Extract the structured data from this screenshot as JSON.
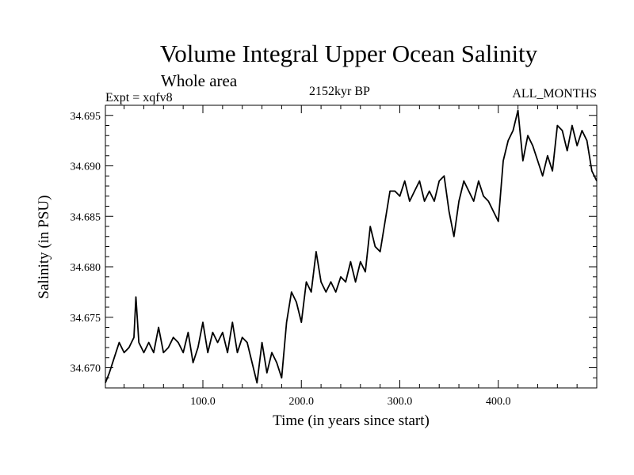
{
  "chart_data": {
    "type": "line",
    "title": "Volume Integral Upper Ocean Salinity",
    "subtitle": "Whole area",
    "left_label": "Expt = xqfv8",
    "center_label": "2152kyr BP",
    "right_label": "ALL_MONTHS",
    "xlabel": "Time (in years since start)",
    "ylabel": "Salinity (in PSU)",
    "xlim": [
      1,
      500
    ],
    "ylim": [
      34.668,
      34.696
    ],
    "x_ticks": [
      100,
      200,
      300,
      400
    ],
    "x_tick_labels": [
      "100.0",
      "200.0",
      "300.0",
      "400.0"
    ],
    "y_ticks": [
      34.67,
      34.675,
      34.68,
      34.685,
      34.69,
      34.695
    ],
    "y_tick_labels": [
      "34.670",
      "34.675",
      "34.680",
      "34.685",
      "34.690",
      "34.695"
    ],
    "series": [
      {
        "name": "salinity",
        "x": [
          1,
          5,
          10,
          15,
          20,
          25,
          30,
          32,
          35,
          40,
          45,
          50,
          55,
          60,
          65,
          70,
          75,
          80,
          85,
          90,
          95,
          100,
          105,
          110,
          115,
          120,
          125,
          130,
          135,
          140,
          145,
          150,
          155,
          160,
          165,
          170,
          175,
          180,
          185,
          190,
          195,
          200,
          205,
          210,
          215,
          220,
          225,
          230,
          235,
          240,
          245,
          250,
          255,
          260,
          265,
          270,
          275,
          280,
          285,
          290,
          295,
          300,
          305,
          310,
          315,
          320,
          325,
          330,
          335,
          340,
          345,
          350,
          355,
          360,
          365,
          370,
          375,
          380,
          385,
          390,
          395,
          400,
          405,
          410,
          415,
          420,
          425,
          430,
          435,
          440,
          445,
          450,
          455,
          460,
          465,
          470,
          475,
          480,
          485,
          490,
          495,
          500
        ],
        "values": [
          34.6685,
          34.6695,
          34.671,
          34.6725,
          34.6715,
          34.672,
          34.673,
          34.677,
          34.6725,
          34.6715,
          34.6725,
          34.6715,
          34.674,
          34.6715,
          34.672,
          34.673,
          34.6725,
          34.6715,
          34.6735,
          34.6705,
          34.672,
          34.6745,
          34.6715,
          34.6735,
          34.6725,
          34.6735,
          34.6715,
          34.6745,
          34.6715,
          34.673,
          34.6725,
          34.6705,
          34.6685,
          34.6725,
          34.6695,
          34.6715,
          34.6705,
          34.669,
          34.6745,
          34.6775,
          34.6765,
          34.6745,
          34.6785,
          34.6775,
          34.6815,
          34.6785,
          34.6775,
          34.6785,
          34.6775,
          34.679,
          34.6785,
          34.6805,
          34.6785,
          34.6805,
          34.6795,
          34.684,
          34.682,
          34.6815,
          34.6845,
          34.6875,
          34.6875,
          34.687,
          34.6885,
          34.6865,
          34.6875,
          34.6885,
          34.6865,
          34.6875,
          34.6865,
          34.6885,
          34.689,
          34.6855,
          34.683,
          34.6865,
          34.6885,
          34.6875,
          34.6865,
          34.6885,
          34.687,
          34.6865,
          34.6855,
          34.6845,
          34.6905,
          34.6925,
          34.6935,
          34.6955,
          34.6905,
          34.693,
          34.692,
          34.6905,
          34.689,
          34.691,
          34.6895,
          34.694,
          34.6935,
          34.6915,
          34.694,
          34.692,
          34.6935,
          34.6925,
          34.6895,
          34.6885
        ]
      }
    ]
  }
}
